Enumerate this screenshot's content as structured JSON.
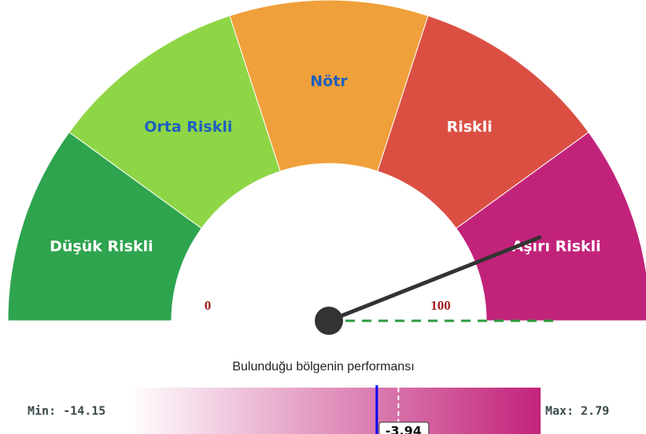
{
  "chart_data": {
    "type": "gauge",
    "segments": [
      {
        "name": "Düşük Riskli",
        "from": 0,
        "to": 20,
        "color": "#2ea44f",
        "text_color": "#ffffff"
      },
      {
        "name": "Orta Riskli",
        "from": 20,
        "to": 40,
        "color": "#8fd646",
        "text_color": "#1f5fbf"
      },
      {
        "name": "Nötr",
        "from": 40,
        "to": 60,
        "color": "#f0a03a",
        "text_color": "#1f5fbf"
      },
      {
        "name": "Riskli",
        "from": 60,
        "to": 80,
        "color": "#db4f43",
        "text_color": "#ffffff"
      },
      {
        "name": "Aşırı Riskli",
        "from": 80,
        "to": 100,
        "color": "#c2237a",
        "text_color": "#ffffff"
      }
    ],
    "xlim": [
      0,
      100
    ],
    "value": 88,
    "threshold": 100,
    "threshold_color": "#2e9a3e",
    "needle_color": "#333333",
    "performance": {
      "title": "Bulunduğu bölgenin performansı",
      "min": -14.15,
      "min_label": "Min: -14.15",
      "max": 2.79,
      "max_label": "Max: 2.79",
      "value": -3.94,
      "value_color": "#0000ff",
      "reference": -3.05,
      "color": "#c2237a"
    }
  }
}
